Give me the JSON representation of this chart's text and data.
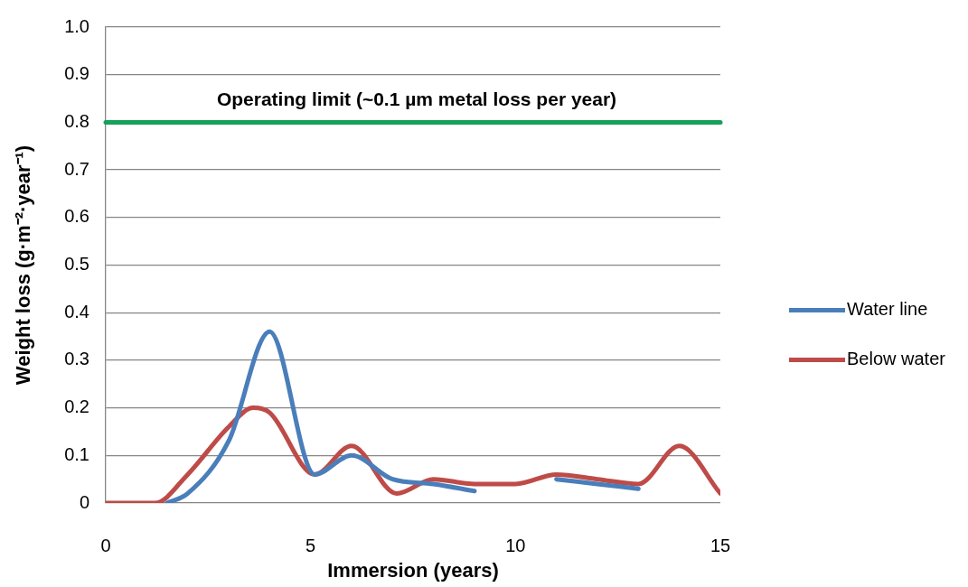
{
  "chart_data": {
    "type": "line",
    "xlabel": "Immersion (years)",
    "ylabel": "Weight loss (g·m⁻²·year⁻¹)",
    "xlim": [
      0,
      15
    ],
    "xticks": [
      0,
      5,
      10,
      15
    ],
    "ylim": [
      0,
      1
    ],
    "yticks": [
      0,
      0.1,
      0.2,
      0.3,
      0.4,
      0.5,
      0.6,
      0.7,
      0.8,
      0.9,
      {
        "value": 1,
        "label": "1.0"
      }
    ],
    "grid": "y",
    "legend": "right",
    "series": [
      {
        "name": "Water line",
        "color": "#4a7ebb",
        "x": [
          1.5,
          2,
          3,
          4,
          5.1,
          6,
          7,
          8,
          9,
          10,
          11,
          12,
          13
        ],
        "values": [
          0,
          0.02,
          0.13,
          0.36,
          0.06,
          0.1,
          0.05,
          0.04,
          0.025,
          null,
          0.05,
          0.04,
          0.03
        ]
      },
      {
        "name": "Below water",
        "color": "#be4b48",
        "x": [
          0,
          1.2,
          2,
          3,
          3.6,
          4,
          5.1,
          6,
          7.1,
          8,
          9,
          10,
          11,
          12,
          13,
          14,
          15
        ],
        "values": [
          0,
          0,
          0.06,
          0.16,
          0.2,
          0.19,
          0.06,
          0.12,
          0.02,
          0.05,
          0.04,
          0.04,
          0.06,
          0.05,
          0.04,
          0.12,
          0.02
        ]
      }
    ],
    "ref_lines": [
      {
        "axis": "y",
        "value": 0.8,
        "label": "Operating limit (~0.1 µm metal loss per year)",
        "color": "#16a05a"
      }
    ]
  }
}
